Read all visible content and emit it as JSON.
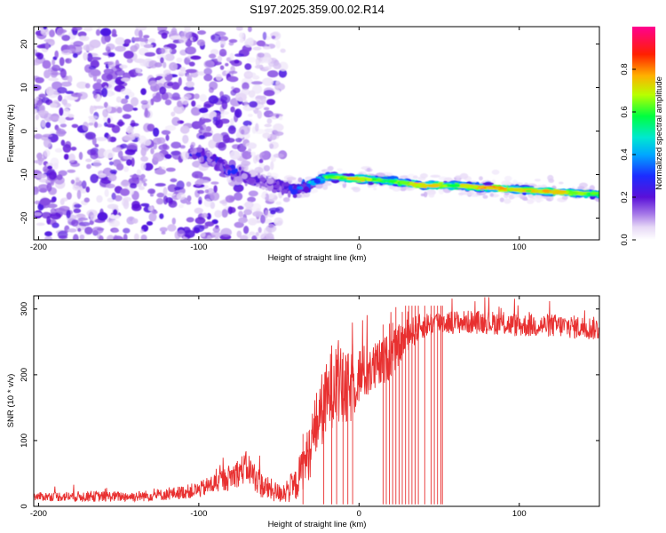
{
  "title": "S197.2025.359.00.02.R14",
  "chart_data": [
    {
      "type": "heatmap",
      "title": "S197.2025.359.00.02.R14",
      "xlabel": "Height of straight line (km)",
      "ylabel": "Frequency (Hz)",
      "xlim": [
        -203,
        150
      ],
      "ylim": [
        -25,
        24
      ],
      "x_ticks": [
        -200,
        -100,
        0,
        100
      ],
      "x_tick_labels": [
        "-200",
        "-100",
        "0",
        "100"
      ],
      "y_ticks": [
        -20,
        -10,
        0,
        10,
        20
      ],
      "y_tick_labels": [
        "-20",
        "-10",
        "0",
        "10",
        "20"
      ],
      "colorbar": {
        "label": "Normalized spectral amplitude",
        "range": [
          0,
          1
        ],
        "ticks": [
          0,
          0.2,
          0.4,
          0.6,
          0.8
        ],
        "tick_labels": [
          "0.0",
          "0.2",
          "0.4",
          "0.6",
          "0.8"
        ],
        "colormap": [
          "#ffffff",
          "#d9c9f3",
          "#9a6ae8",
          "#5a10d8",
          "#1830ff",
          "#00d8f0",
          "#00ff40",
          "#c8ff00",
          "#ff9000",
          "#ff0000",
          "#ff0090"
        ]
      },
      "ridge": {
        "x": [
          -100,
          -80,
          -60,
          -40,
          -20,
          0,
          20,
          40,
          60,
          80,
          100,
          120,
          150
        ],
        "frequency": [
          -5,
          -9,
          -12,
          -13.5,
          -10.5,
          -11,
          -11.5,
          -12.5,
          -12.5,
          -13,
          -13.5,
          -14,
          -14.5
        ],
        "amplitude": [
          0.3,
          0.35,
          0.2,
          0.35,
          0.6,
          0.75,
          0.6,
          0.8,
          0.65,
          0.85,
          0.7,
          0.8,
          0.6
        ]
      },
      "noise_region_x": [
        -203,
        -55
      ]
    },
    {
      "type": "line",
      "xlabel": "Height of straight line (km)",
      "ylabel": "SNR (10 * v/v)",
      "xlim": [
        -203,
        150
      ],
      "ylim": [
        0,
        320
      ],
      "x_ticks": [
        -200,
        -100,
        0,
        100
      ],
      "x_tick_labels": [
        "-200",
        "-100",
        "0",
        "100"
      ],
      "y_ticks": [
        0,
        100,
        200,
        300
      ],
      "y_tick_labels": [
        "0",
        "100",
        "200",
        "300"
      ],
      "series": [
        {
          "name": "SNR",
          "color": "#e83030",
          "x": [
            -203,
            -180,
            -160,
            -140,
            -120,
            -100,
            -90,
            -80,
            -70,
            -60,
            -50,
            -40,
            -30,
            -25,
            -20,
            -15,
            -10,
            -5,
            0,
            10,
            20,
            30,
            40,
            50,
            60,
            80,
            100,
            120,
            150
          ],
          "y": [
            15,
            15,
            15,
            15,
            18,
            25,
            35,
            45,
            60,
            30,
            20,
            30,
            90,
            140,
            160,
            200,
            170,
            180,
            200,
            210,
            230,
            260,
            275,
            280,
            280,
            280,
            275,
            275,
            270
          ],
          "noise": [
            6,
            8,
            8,
            8,
            9,
            12,
            16,
            20,
            25,
            20,
            15,
            25,
            45,
            55,
            60,
            70,
            60,
            55,
            45,
            40,
            35,
            25,
            20,
            18,
            18,
            18,
            18,
            18,
            18
          ],
          "dropouts_x": [
            -35,
            -22,
            -17,
            -14,
            -10,
            -7,
            -4,
            15,
            17,
            19,
            21,
            23,
            25,
            27,
            29,
            31,
            33,
            35,
            37,
            41,
            45,
            47,
            49,
            51,
            52
          ]
        }
      ]
    }
  ]
}
